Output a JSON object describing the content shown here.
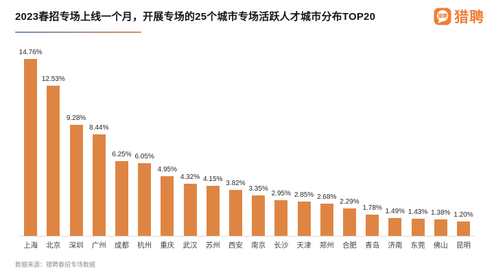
{
  "header": {
    "title": "2023春招专场上线一个月，开展专场的25个城市专场活跃人才城市分布TOP20"
  },
  "logo": {
    "icon_text": "猎聘",
    "brand_text": "猎聘"
  },
  "chart_data": {
    "type": "bar",
    "title": "2023春招专场上线一个月，开展专场的25个城市专场活跃人才城市分布TOP20",
    "categories": [
      "上海",
      "北京",
      "深圳",
      "广州",
      "成都",
      "杭州",
      "重庆",
      "武汉",
      "苏州",
      "西安",
      "南京",
      "长沙",
      "天津",
      "郑州",
      "合肥",
      "青岛",
      "济南",
      "东莞",
      "佛山",
      "昆明"
    ],
    "values": [
      14.76,
      12.53,
      9.28,
      8.44,
      6.25,
      6.05,
      4.95,
      4.32,
      4.15,
      3.82,
      3.35,
      2.95,
      2.85,
      2.68,
      2.29,
      1.78,
      1.49,
      1.43,
      1.38,
      1.2
    ],
    "value_labels": [
      "14.76%",
      "12.53%",
      "9.28%",
      "8.44%",
      "6.25%",
      "6.05%",
      "4.95%",
      "4.32%",
      "4.15%",
      "3.82%",
      "3.35%",
      "2.95%",
      "2.85%",
      "2.68%",
      "2.29%",
      "1.78%",
      "1.49%",
      "1.43%",
      "1.38%",
      "1.20%"
    ],
    "xlabel": "",
    "ylabel": "",
    "ylim": [
      0,
      15.5
    ],
    "grid": false,
    "legend": false,
    "bar_color": "#DF8544"
  },
  "footer": {
    "source": "数据来源：猎聘春招专场数据"
  },
  "colors": {
    "bar_orange": "#DF8544",
    "brand_orange": "#F07E35",
    "underline_left": "#7292B8",
    "underline_right": "#D98E5F",
    "axis_line": "#d9d9d9"
  }
}
